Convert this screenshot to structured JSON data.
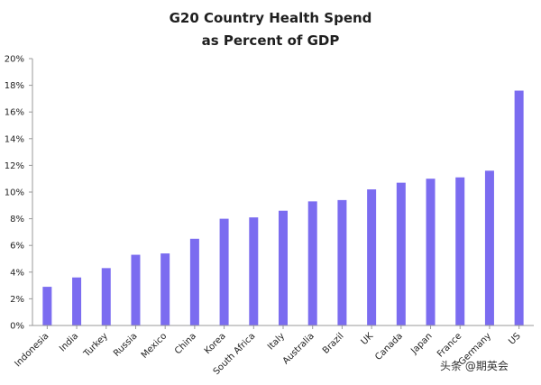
{
  "chart_data": {
    "type": "bar",
    "title_lines": [
      "G20 Country Health Spend",
      "as Percent of GDP"
    ],
    "categories": [
      "Indonesia",
      "India",
      "Turkey",
      "Russia",
      "Mexico",
      "China",
      "Korea",
      "South Africa",
      "Italy",
      "Australia",
      "Brazil",
      "UK",
      "Canada",
      "Japan",
      "France",
      "Germany",
      "US"
    ],
    "values": [
      2.9,
      3.6,
      4.3,
      5.3,
      5.4,
      6.5,
      8.0,
      8.1,
      8.6,
      9.3,
      9.4,
      10.2,
      10.7,
      11.0,
      11.1,
      11.6,
      17.6
    ],
    "ylim": [
      0,
      20
    ],
    "yticks": [
      0,
      2,
      4,
      6,
      8,
      10,
      12,
      14,
      16,
      18,
      20
    ],
    "ytick_labels": [
      "0%",
      "2%",
      "4%",
      "6%",
      "8%",
      "10%",
      "12%",
      "14%",
      "16%",
      "18%",
      "20%"
    ],
    "xlabel": "",
    "ylabel": "",
    "bar_color": "#7b6cf0",
    "grid": false
  },
  "watermark": {
    "text": "头条 @期英会"
  },
  "colors": {
    "axis": "#999999",
    "text": "#222222"
  }
}
